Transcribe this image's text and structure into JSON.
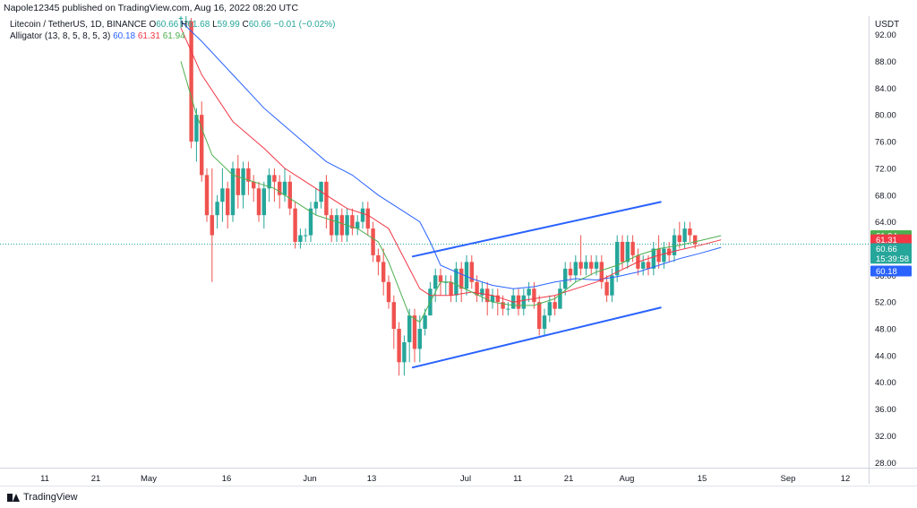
{
  "header": {
    "publisher_text": "Napole12345 published on TradingView.com, Aug 16, 2022 08:20 UTC"
  },
  "legend": {
    "symbol_title": "Litecoin / TetherUS, 1D, BINANCE",
    "o_label": "O",
    "o_value": "60.66",
    "h_label": "H",
    "h_value": "61.68",
    "l_label": "L",
    "l_value": "59.99",
    "c_label": "C",
    "c_value": "60.66",
    "change": "−0.01 (−0.02%)",
    "indicator_title": "Alligator (13, 8, 5, 8, 5, 3)",
    "jaw_value": "60.18",
    "teeth_value": "61.31",
    "lips_value": "61.94"
  },
  "footer": {
    "brand": "TradingView"
  },
  "chart_data": {
    "type": "candlestick",
    "currency_label": "USDT",
    "y_ticks": [
      "92.00",
      "88.00",
      "84.00",
      "80.00",
      "76.00",
      "72.00",
      "68.00",
      "64.00",
      "60.00",
      "56.00",
      "52.00",
      "48.00",
      "44.00",
      "40.00",
      "36.00",
      "32.00",
      "28.00"
    ],
    "x_ticks": [
      "11",
      "21",
      "May",
      "16",
      "Jun",
      "13",
      "Jul",
      "11",
      "21",
      "Aug",
      "15",
      "Sep",
      "12"
    ],
    "ylim": [
      27.5,
      94.5
    ],
    "price_labels": [
      {
        "value": "61.94",
        "price": 61.94,
        "color": "#4caf50"
      },
      {
        "value": "61.31",
        "price": 61.31,
        "color": "#f23645"
      },
      {
        "value": "60.66",
        "price": 60.0,
        "color": "#26a69a"
      },
      {
        "value": "15:39:58",
        "price": 58.55,
        "color": "#26a69a"
      },
      {
        "value": "60.18",
        "price": 56.65,
        "color": "#2962ff"
      }
    ],
    "last_price": 60.66,
    "candles": [
      [
        94.5,
        94.5,
        95,
        93
      ],
      [
        94,
        94,
        95,
        93
      ],
      [
        94,
        76,
        94.5,
        75
      ],
      [
        76,
        80,
        81,
        73
      ],
      [
        80,
        71,
        82,
        70
      ],
      [
        71,
        65,
        72,
        64
      ],
      [
        65,
        62,
        72,
        55
      ],
      [
        65,
        67,
        68,
        63
      ],
      [
        67,
        69,
        72,
        64
      ],
      [
        69,
        65,
        70,
        63
      ],
      [
        65,
        72,
        73,
        64
      ],
      [
        72,
        68,
        74,
        66
      ],
      [
        68,
        72,
        73,
        66
      ],
      [
        72,
        70,
        73,
        68
      ],
      [
        70,
        69,
        71,
        67
      ],
      [
        69,
        65,
        70,
        64
      ],
      [
        65,
        69,
        70,
        63
      ],
      [
        69,
        71,
        72,
        67
      ],
      [
        71,
        70,
        72,
        67
      ],
      [
        70,
        68,
        71,
        66
      ],
      [
        68,
        70,
        72,
        67
      ],
      [
        70,
        66,
        71,
        65
      ],
      [
        66,
        61,
        67,
        60
      ],
      [
        61,
        62,
        63,
        60
      ],
      [
        62,
        62,
        63,
        61
      ],
      [
        62,
        66,
        67,
        61
      ],
      [
        66,
        67,
        69,
        65
      ],
      [
        67,
        70,
        70,
        66
      ],
      [
        70,
        65,
        71,
        63
      ],
      [
        65,
        62,
        66,
        61
      ],
      [
        62,
        65,
        66,
        61
      ],
      [
        65,
        62,
        66,
        61
      ],
      [
        62,
        65,
        66,
        61
      ],
      [
        65,
        63,
        66,
        62
      ],
      [
        63,
        64,
        65,
        62
      ],
      [
        64,
        66,
        67,
        63
      ],
      [
        66,
        63,
        67,
        62
      ],
      [
        63,
        59,
        64,
        58
      ],
      [
        59,
        58,
        60,
        56
      ],
      [
        58,
        55,
        60,
        53
      ],
      [
        55,
        52,
        56,
        51
      ],
      [
        52,
        48,
        53,
        45
      ],
      [
        48,
        43,
        49,
        41
      ],
      [
        43,
        46,
        47,
        41
      ],
      [
        46,
        50,
        51,
        43
      ],
      [
        50,
        45,
        51,
        43
      ],
      [
        45,
        48,
        50,
        43
      ],
      [
        48,
        50,
        51,
        47
      ],
      [
        50,
        54,
        55,
        50
      ],
      [
        54,
        56,
        57,
        52
      ],
      [
        56,
        55,
        57,
        53
      ],
      [
        55,
        55,
        56,
        53
      ],
      [
        55,
        53,
        56,
        52
      ],
      [
        53,
        57,
        58,
        52
      ],
      [
        57,
        54,
        58,
        52
      ],
      [
        54,
        58,
        59,
        53
      ],
      [
        58,
        55,
        59,
        54
      ],
      [
        55,
        53,
        56,
        52
      ],
      [
        53,
        54,
        55,
        52
      ],
      [
        54,
        52,
        55,
        50
      ],
      [
        52,
        53,
        54,
        51
      ],
      [
        53,
        52,
        54,
        50
      ],
      [
        52,
        51,
        53,
        50
      ],
      [
        51,
        51,
        52,
        50
      ],
      [
        51,
        53,
        54,
        51
      ],
      [
        53,
        51,
        54,
        50
      ],
      [
        51,
        53,
        54,
        50
      ],
      [
        53,
        54,
        55,
        52
      ],
      [
        54,
        52,
        55,
        51
      ],
      [
        52,
        48,
        53,
        47
      ],
      [
        48,
        50,
        51,
        47
      ],
      [
        50,
        52,
        53,
        49
      ],
      [
        52,
        51,
        53,
        50
      ],
      [
        51,
        54,
        55,
        51
      ],
      [
        54,
        57,
        58,
        53
      ],
      [
        57,
        56,
        58,
        55
      ],
      [
        56,
        58,
        59,
        55
      ],
      [
        58,
        57,
        62,
        56
      ],
      [
        57,
        58,
        59,
        56
      ],
      [
        58,
        57,
        59,
        56
      ],
      [
        57,
        58,
        59,
        56
      ],
      [
        58,
        55,
        59,
        54
      ],
      [
        55,
        53,
        56,
        52
      ],
      [
        53,
        56,
        57,
        52
      ],
      [
        56,
        61,
        62,
        55
      ],
      [
        61,
        58,
        62,
        57
      ],
      [
        58,
        61,
        62,
        57
      ],
      [
        61,
        59,
        62,
        58
      ],
      [
        59,
        57,
        60,
        56
      ],
      [
        57,
        58,
        59,
        56
      ],
      [
        58,
        57,
        59,
        56
      ],
      [
        57,
        60,
        61,
        56
      ],
      [
        60,
        58,
        62,
        57
      ],
      [
        58,
        60,
        61,
        57
      ],
      [
        60,
        59,
        61,
        58
      ],
      [
        59,
        62,
        63,
        58
      ],
      [
        62,
        61,
        64,
        60
      ],
      [
        61,
        63,
        64,
        60
      ],
      [
        63,
        62,
        64,
        61
      ],
      [
        62,
        60.66,
        61.68,
        59.99
      ]
    ],
    "series": [
      {
        "name": "Jaw",
        "color": "#2962ff",
        "values": [
          [
            0,
            94
          ],
          [
            4,
            91
          ],
          [
            10,
            86
          ],
          [
            16,
            81
          ],
          [
            22,
            77
          ],
          [
            28,
            73
          ],
          [
            33,
            71
          ],
          [
            38,
            68
          ],
          [
            42,
            66
          ],
          [
            46,
            64
          ],
          [
            48,
            61
          ],
          [
            50,
            57.5
          ],
          [
            53,
            56.5
          ],
          [
            56,
            55.5
          ],
          [
            60,
            54.5
          ],
          [
            64,
            54
          ],
          [
            68,
            54.3
          ],
          [
            72,
            55
          ],
          [
            76,
            55.5
          ],
          [
            80,
            55.3
          ],
          [
            84,
            55.8
          ],
          [
            88,
            56.5
          ],
          [
            92,
            57.5
          ],
          [
            96,
            58.5
          ],
          [
            100,
            59.3
          ],
          [
            104,
            60.18
          ]
        ]
      },
      {
        "name": "Teeth",
        "color": "#f23645",
        "values": [
          [
            0,
            93
          ],
          [
            4,
            86
          ],
          [
            10,
            79
          ],
          [
            16,
            75
          ],
          [
            20,
            72
          ],
          [
            24,
            70
          ],
          [
            28,
            68
          ],
          [
            32,
            66
          ],
          [
            36,
            65
          ],
          [
            40,
            63
          ],
          [
            42,
            60
          ],
          [
            44,
            57
          ],
          [
            46,
            54
          ],
          [
            48,
            53
          ],
          [
            52,
            53
          ],
          [
            56,
            53.5
          ],
          [
            60,
            53
          ],
          [
            64,
            52
          ],
          [
            68,
            52.5
          ],
          [
            72,
            53
          ],
          [
            76,
            54
          ],
          [
            80,
            55
          ],
          [
            84,
            56.5
          ],
          [
            88,
            58
          ],
          [
            92,
            59
          ],
          [
            96,
            59.8
          ],
          [
            100,
            60.5
          ],
          [
            104,
            61.31
          ]
        ]
      },
      {
        "name": "Lips",
        "color": "#4caf50",
        "values": [
          [
            0,
            88
          ],
          [
            3,
            80
          ],
          [
            6,
            74
          ],
          [
            10,
            71
          ],
          [
            14,
            70
          ],
          [
            18,
            69
          ],
          [
            22,
            67
          ],
          [
            26,
            65
          ],
          [
            30,
            64
          ],
          [
            34,
            63
          ],
          [
            38,
            61
          ],
          [
            40,
            58
          ],
          [
            42,
            54
          ],
          [
            44,
            50
          ],
          [
            46,
            49
          ],
          [
            48,
            52
          ],
          [
            50,
            55
          ],
          [
            52,
            55
          ],
          [
            56,
            53.5
          ],
          [
            60,
            52
          ],
          [
            64,
            51.5
          ],
          [
            68,
            51.5
          ],
          [
            72,
            52.5
          ],
          [
            76,
            55
          ],
          [
            80,
            56.5
          ],
          [
            84,
            57.5
          ],
          [
            88,
            59
          ],
          [
            92,
            60
          ],
          [
            96,
            60.5
          ],
          [
            100,
            61.2
          ],
          [
            104,
            61.94
          ]
        ]
      }
    ],
    "channel_lines": [
      {
        "x1": 44.5,
        "y1": 58.8,
        "x2": 92.5,
        "y2": 67.0,
        "color": "#2962ff"
      },
      {
        "x1": 44.5,
        "y1": 42.2,
        "x2": 92.5,
        "y2": 51.2,
        "color": "#2962ff"
      }
    ]
  }
}
